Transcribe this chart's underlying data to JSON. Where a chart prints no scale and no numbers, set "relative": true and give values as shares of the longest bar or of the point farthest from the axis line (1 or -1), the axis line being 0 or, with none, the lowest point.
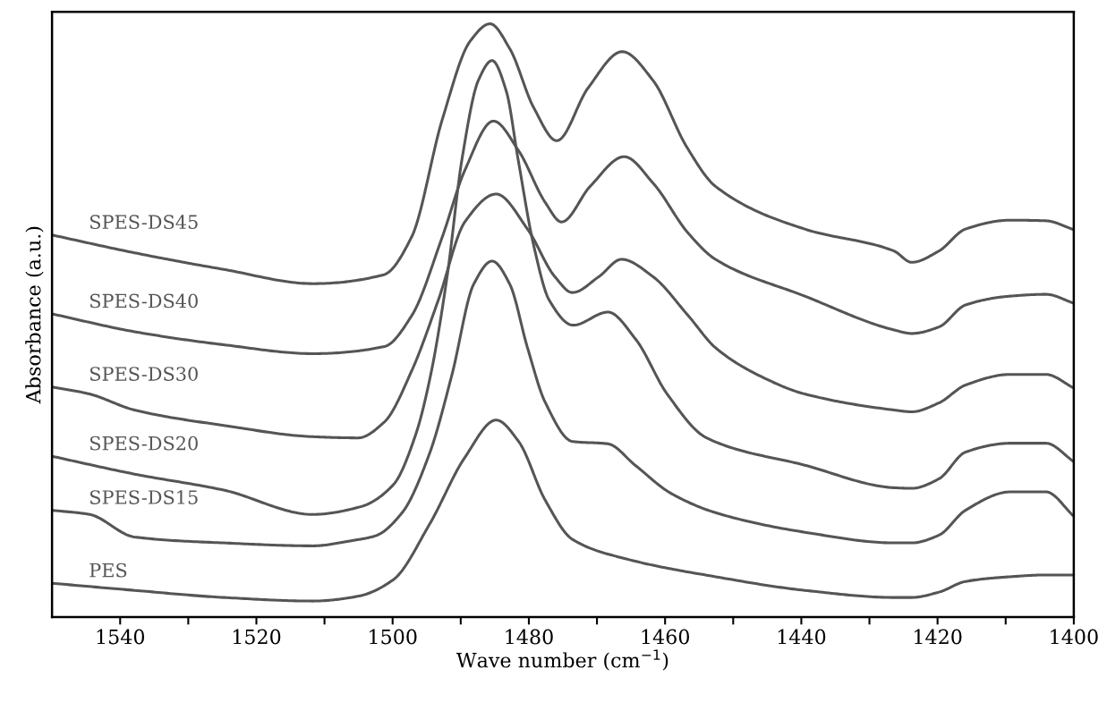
{
  "chart_data": {
    "type": "line",
    "relative": true,
    "xlabel": "Wave number (cm$^{−1}$)",
    "ylabel": "Absorbance (a.u.)",
    "xlim": [
      1550,
      1400
    ],
    "xticks": [
      1540,
      {
        "value": 1530,
        "label": null
      },
      1520,
      {
        "value": 1510,
        "label": null
      },
      1500,
      {
        "value": 1490,
        "label": null
      },
      1480,
      {
        "value": 1470,
        "label": null
      },
      1460,
      {
        "value": 1450,
        "label": null
      },
      1440,
      {
        "value": 1430,
        "label": null
      },
      1420,
      {
        "value": 1410,
        "label": null
      },
      1400
    ],
    "tick_labels": "x",
    "grid": false,
    "legend": false,
    "marker": "none",
    "line_style": "solid",
    "series": [
      {
        "name": "SPES-DS45",
        "color": "#555555",
        "x": [
          1550,
          1537.9,
          1524.8,
          1511.7,
          1501.3,
          1497.2,
          1492.7,
          1488.6,
          1485.7,
          1482.8,
          1479.3,
          1475.9,
          1471.3,
          1466.3,
          1461.8,
          1456.8,
          1452.6,
          1439.5,
          1426.4,
          1423.8,
          1419.8,
          1415.9,
          1409.3,
          1404.1,
          1400
        ],
        "values": [
          0.644,
          0.614,
          0.586,
          0.562,
          0.577,
          0.641,
          0.839,
          0.971,
          1.0,
          0.958,
          0.859,
          0.803,
          0.892,
          0.953,
          0.905,
          0.792,
          0.726,
          0.654,
          0.617,
          0.598,
          0.617,
          0.654,
          0.669,
          0.668,
          0.653
        ]
      },
      {
        "name": "SPES-DS40",
        "color": "#555555",
        "x": [
          1550,
          1537.9,
          1524.8,
          1511.7,
          1501.2,
          1497.2,
          1492.7,
          1489.4,
          1485.2,
          1481.5,
          1477.6,
          1475.2,
          1471.0,
          1466.0,
          1461.8,
          1456.6,
          1452.6,
          1439.5,
          1426.4,
          1423.8,
          1419.8,
          1415.9,
          1409.3,
          1404.1,
          1400
        ],
        "values": [
          0.511,
          0.481,
          0.459,
          0.444,
          0.456,
          0.508,
          0.641,
          0.753,
          0.836,
          0.786,
          0.699,
          0.666,
          0.726,
          0.776,
          0.732,
          0.647,
          0.603,
          0.541,
          0.484,
          0.478,
          0.489,
          0.526,
          0.541,
          0.544,
          0.529
        ]
      },
      {
        "name": "SPES-DS30",
        "color": "#555555",
        "x": [
          1550,
          1544.5,
          1537.9,
          1524.8,
          1511.7,
          1505.1,
          1501.2,
          1497.2,
          1493.3,
          1489.4,
          1484.8,
          1480.2,
          1476.2,
          1473.6,
          1469.7,
          1466.4,
          1461.8,
          1456.6,
          1452.6,
          1446,
          1439.5,
          1426.4,
          1423.8,
          1419.8,
          1415.9,
          1409.3,
          1404.1,
          1400
        ],
        "values": [
          0.388,
          0.376,
          0.349,
          0.323,
          0.304,
          0.302,
          0.329,
          0.415,
          0.534,
          0.666,
          0.713,
          0.654,
          0.574,
          0.547,
          0.574,
          0.603,
          0.574,
          0.508,
          0.454,
          0.406,
          0.376,
          0.349,
          0.346,
          0.361,
          0.391,
          0.409,
          0.409,
          0.386
        ]
      },
      {
        "name": "SPES-DS20",
        "color": "#555555",
        "x": [
          1550,
          1537.9,
          1524.8,
          1511.7,
          1504.7,
          1499.9,
          1496.6,
          1494.4,
          1492.0,
          1489.8,
          1487.4,
          1485.4,
          1483.3,
          1481.6,
          1479.3,
          1477.0,
          1473.5,
          1468.4,
          1464.3,
          1459.7,
          1453.9,
          1439.5,
          1426.4,
          1423.8,
          1419.8,
          1415.9,
          1409.3,
          1404.1,
          1400
        ],
        "values": [
          0.271,
          0.241,
          0.214,
          0.173,
          0.186,
          0.223,
          0.308,
          0.409,
          0.574,
          0.773,
          0.905,
          0.938,
          0.886,
          0.773,
          0.627,
          0.534,
          0.492,
          0.514,
          0.468,
          0.376,
          0.302,
          0.256,
          0.218,
          0.217,
          0.233,
          0.278,
          0.293,
          0.293,
          0.262
        ]
      },
      {
        "name": "SPES-DS15",
        "color": "#555555",
        "x": [
          1550,
          1544.5,
          1537.9,
          1524.8,
          1511.7,
          1505.9,
          1502.5,
          1498.6,
          1494.6,
          1491.3,
          1488.1,
          1485.4,
          1482.8,
          1480.2,
          1477.6,
          1473.6,
          1468.4,
          1464.4,
          1459.2,
          1452.6,
          1439.5,
          1426.4,
          1423.8,
          1419.8,
          1415.9,
          1409.3,
          1404.1,
          1400
        ],
        "values": [
          0.18,
          0.173,
          0.135,
          0.125,
          0.12,
          0.129,
          0.137,
          0.176,
          0.275,
          0.408,
          0.561,
          0.6,
          0.561,
          0.454,
          0.362,
          0.296,
          0.292,
          0.256,
          0.209,
          0.176,
          0.143,
          0.125,
          0.125,
          0.138,
          0.18,
          0.211,
          0.211,
          0.17
        ]
      },
      {
        "name": "PES",
        "color": "#555555",
        "x": [
          1550,
          1537.9,
          1524.8,
          1511.7,
          1505.1,
          1499.9,
          1494.6,
          1489.4,
          1484.8,
          1481.5,
          1477.6,
          1473.6,
          1465.7,
          1452.6,
          1439.5,
          1426.4,
          1423.8,
          1419.8,
          1415.9,
          1409.3,
          1404.1,
          1400
        ],
        "values": [
          0.057,
          0.045,
          0.033,
          0.027,
          0.035,
          0.063,
          0.156,
          0.269,
          0.332,
          0.296,
          0.197,
          0.131,
          0.098,
          0.068,
          0.045,
          0.033,
          0.033,
          0.042,
          0.06,
          0.068,
          0.071,
          0.071
        ]
      }
    ]
  }
}
